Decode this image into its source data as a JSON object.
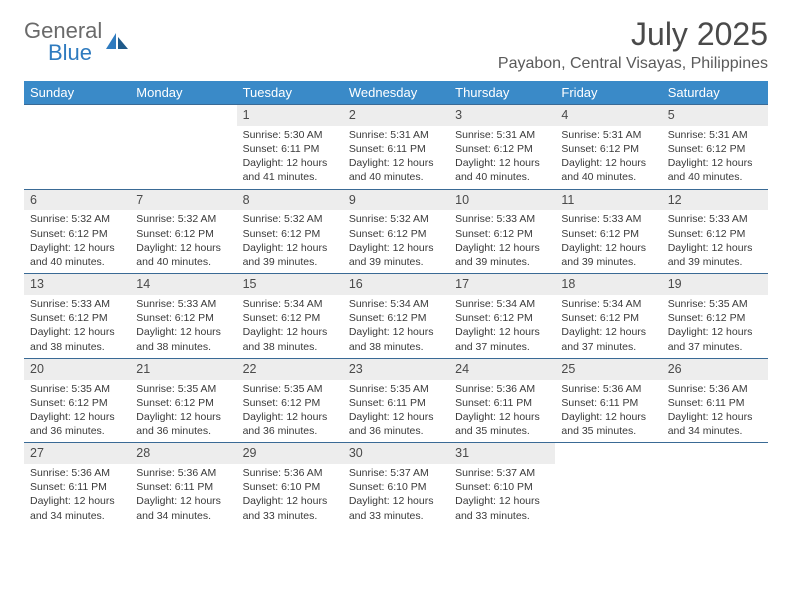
{
  "brand": {
    "line1": "General",
    "line2": "Blue"
  },
  "title": "July 2025",
  "location": "Payabon, Central Visayas, Philippines",
  "colors": {
    "header_bg": "#3a8ac8",
    "header_text": "#ffffff",
    "daynum_bg": "#ededed",
    "rule": "#3a6a95",
    "body_text": "#3a3a3a",
    "title_text": "#4a4a4a",
    "brand_gray": "#6a6a6a",
    "brand_blue": "#2f7bbf",
    "page_bg": "#ffffff"
  },
  "weekdays": [
    "Sunday",
    "Monday",
    "Tuesday",
    "Wednesday",
    "Thursday",
    "Friday",
    "Saturday"
  ],
  "weeks": [
    [
      null,
      null,
      {
        "n": "1",
        "sunrise": "5:30 AM",
        "sunset": "6:11 PM",
        "daylight": "12 hours and 41 minutes."
      },
      {
        "n": "2",
        "sunrise": "5:31 AM",
        "sunset": "6:11 PM",
        "daylight": "12 hours and 40 minutes."
      },
      {
        "n": "3",
        "sunrise": "5:31 AM",
        "sunset": "6:12 PM",
        "daylight": "12 hours and 40 minutes."
      },
      {
        "n": "4",
        "sunrise": "5:31 AM",
        "sunset": "6:12 PM",
        "daylight": "12 hours and 40 minutes."
      },
      {
        "n": "5",
        "sunrise": "5:31 AM",
        "sunset": "6:12 PM",
        "daylight": "12 hours and 40 minutes."
      }
    ],
    [
      {
        "n": "6",
        "sunrise": "5:32 AM",
        "sunset": "6:12 PM",
        "daylight": "12 hours and 40 minutes."
      },
      {
        "n": "7",
        "sunrise": "5:32 AM",
        "sunset": "6:12 PM",
        "daylight": "12 hours and 40 minutes."
      },
      {
        "n": "8",
        "sunrise": "5:32 AM",
        "sunset": "6:12 PM",
        "daylight": "12 hours and 39 minutes."
      },
      {
        "n": "9",
        "sunrise": "5:32 AM",
        "sunset": "6:12 PM",
        "daylight": "12 hours and 39 minutes."
      },
      {
        "n": "10",
        "sunrise": "5:33 AM",
        "sunset": "6:12 PM",
        "daylight": "12 hours and 39 minutes."
      },
      {
        "n": "11",
        "sunrise": "5:33 AM",
        "sunset": "6:12 PM",
        "daylight": "12 hours and 39 minutes."
      },
      {
        "n": "12",
        "sunrise": "5:33 AM",
        "sunset": "6:12 PM",
        "daylight": "12 hours and 39 minutes."
      }
    ],
    [
      {
        "n": "13",
        "sunrise": "5:33 AM",
        "sunset": "6:12 PM",
        "daylight": "12 hours and 38 minutes."
      },
      {
        "n": "14",
        "sunrise": "5:33 AM",
        "sunset": "6:12 PM",
        "daylight": "12 hours and 38 minutes."
      },
      {
        "n": "15",
        "sunrise": "5:34 AM",
        "sunset": "6:12 PM",
        "daylight": "12 hours and 38 minutes."
      },
      {
        "n": "16",
        "sunrise": "5:34 AM",
        "sunset": "6:12 PM",
        "daylight": "12 hours and 38 minutes."
      },
      {
        "n": "17",
        "sunrise": "5:34 AM",
        "sunset": "6:12 PM",
        "daylight": "12 hours and 37 minutes."
      },
      {
        "n": "18",
        "sunrise": "5:34 AM",
        "sunset": "6:12 PM",
        "daylight": "12 hours and 37 minutes."
      },
      {
        "n": "19",
        "sunrise": "5:35 AM",
        "sunset": "6:12 PM",
        "daylight": "12 hours and 37 minutes."
      }
    ],
    [
      {
        "n": "20",
        "sunrise": "5:35 AM",
        "sunset": "6:12 PM",
        "daylight": "12 hours and 36 minutes."
      },
      {
        "n": "21",
        "sunrise": "5:35 AM",
        "sunset": "6:12 PM",
        "daylight": "12 hours and 36 minutes."
      },
      {
        "n": "22",
        "sunrise": "5:35 AM",
        "sunset": "6:12 PM",
        "daylight": "12 hours and 36 minutes."
      },
      {
        "n": "23",
        "sunrise": "5:35 AM",
        "sunset": "6:11 PM",
        "daylight": "12 hours and 36 minutes."
      },
      {
        "n": "24",
        "sunrise": "5:36 AM",
        "sunset": "6:11 PM",
        "daylight": "12 hours and 35 minutes."
      },
      {
        "n": "25",
        "sunrise": "5:36 AM",
        "sunset": "6:11 PM",
        "daylight": "12 hours and 35 minutes."
      },
      {
        "n": "26",
        "sunrise": "5:36 AM",
        "sunset": "6:11 PM",
        "daylight": "12 hours and 34 minutes."
      }
    ],
    [
      {
        "n": "27",
        "sunrise": "5:36 AM",
        "sunset": "6:11 PM",
        "daylight": "12 hours and 34 minutes."
      },
      {
        "n": "28",
        "sunrise": "5:36 AM",
        "sunset": "6:11 PM",
        "daylight": "12 hours and 34 minutes."
      },
      {
        "n": "29",
        "sunrise": "5:36 AM",
        "sunset": "6:10 PM",
        "daylight": "12 hours and 33 minutes."
      },
      {
        "n": "30",
        "sunrise": "5:37 AM",
        "sunset": "6:10 PM",
        "daylight": "12 hours and 33 minutes."
      },
      {
        "n": "31",
        "sunrise": "5:37 AM",
        "sunset": "6:10 PM",
        "daylight": "12 hours and 33 minutes."
      },
      null,
      null
    ]
  ],
  "labels": {
    "sunrise": "Sunrise:",
    "sunset": "Sunset:",
    "daylight": "Daylight:"
  }
}
